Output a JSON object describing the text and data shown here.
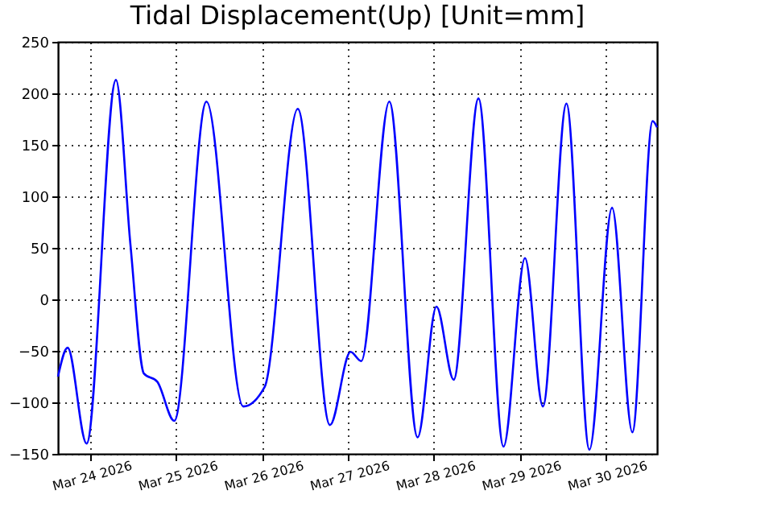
{
  "chart_data": {
    "type": "line",
    "title": "Tidal Displacement(Up) [Unit=mm]",
    "x": [
      "2026-03-23T15:00",
      "2026-03-23T17:42",
      "2026-03-23T23:00",
      "2026-03-24T07:12",
      "2026-03-24T11:15",
      "2026-03-24T15:00",
      "2026-03-24T18:45",
      "2026-03-24T23:30",
      "2026-03-25T08:30",
      "2026-03-25T18:45",
      "2026-03-26T00:45",
      "2026-03-26T10:00",
      "2026-03-26T19:00",
      "2026-03-27T00:45",
      "2026-03-27T03:45",
      "2026-03-27T11:35",
      "2026-03-27T19:30",
      "2026-03-28T00:45",
      "2026-03-28T05:35",
      "2026-03-28T12:30",
      "2026-03-28T19:30",
      "2026-03-29T01:30",
      "2026-03-29T06:30",
      "2026-03-29T13:05",
      "2026-03-29T19:30",
      "2026-03-30T01:50",
      "2026-03-30T07:30",
      "2026-03-30T13:10",
      "2026-03-30T14:24"
    ],
    "series": [
      {
        "color": "#0000ff",
        "values": [
          -75,
          -47,
          -140,
          213,
          53,
          -72,
          -80,
          -118,
          192,
          -104,
          -85,
          185,
          -122,
          -51,
          -60,
          192,
          -134,
          -7,
          -78,
          195,
          -143,
          40,
          -104,
          190,
          -146,
          89,
          -129,
          173,
          167
        ]
      }
    ],
    "xlim": [
      "2026-03-23T15:00",
      "2026-03-30T14:24"
    ],
    "xticks": [
      {
        "value": "2026-03-24",
        "label": "Mar 24 2026"
      },
      {
        "value": "2026-03-25",
        "label": "Mar 25 2026"
      },
      {
        "value": "2026-03-26",
        "label": "Mar 26 2026"
      },
      {
        "value": "2026-03-27",
        "label": "Mar 27 2026"
      },
      {
        "value": "2026-03-28",
        "label": "Mar 28 2026"
      },
      {
        "value": "2026-03-29",
        "label": "Mar 29 2026"
      },
      {
        "value": "2026-03-30",
        "label": "Mar 30 2026"
      }
    ],
    "ylim": [
      -150,
      250
    ],
    "yticks": [
      -150,
      -100,
      -50,
      0,
      50,
      100,
      150,
      200,
      250
    ],
    "grid": true,
    "marker": "none",
    "line_style": "solid"
  }
}
